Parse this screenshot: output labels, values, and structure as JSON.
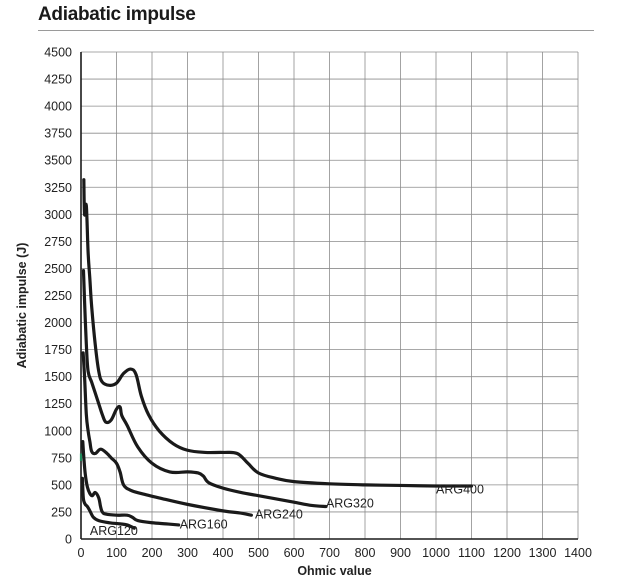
{
  "page": {
    "title": "Adiabatic impulse"
  },
  "chart_data": {
    "type": "line",
    "title": "Adiabatic impulse",
    "xlabel": "Ohmic value",
    "ylabel": "Adiabatic impulse (J)",
    "xlim": [
      0,
      1400
    ],
    "ylim": [
      0,
      4500
    ],
    "x_ticks": [
      0,
      100,
      200,
      300,
      400,
      500,
      600,
      700,
      800,
      900,
      1000,
      1100,
      1200,
      1300,
      1400
    ],
    "y_ticks": [
      0,
      250,
      500,
      750,
      1000,
      1250,
      1500,
      1750,
      2000,
      2250,
      2500,
      2750,
      3000,
      3250,
      3500,
      3750,
      4000,
      4250,
      4500
    ],
    "grid": true,
    "colors": {
      "series": "#1a1a1a",
      "grid": "#8c8c8c",
      "axis": "#1a1a1a",
      "marker": "#1e8a5a"
    },
    "series": [
      {
        "name": "ARG400",
        "label_pos": [
          1000,
          420
        ],
        "points": [
          [
            8,
            3320
          ],
          [
            10,
            3000
          ],
          [
            15,
            3080
          ],
          [
            20,
            2650
          ],
          [
            25,
            2400
          ],
          [
            30,
            2150
          ],
          [
            40,
            1800
          ],
          [
            50,
            1550
          ],
          [
            60,
            1450
          ],
          [
            80,
            1420
          ],
          [
            100,
            1440
          ],
          [
            120,
            1530
          ],
          [
            140,
            1570
          ],
          [
            155,
            1520
          ],
          [
            170,
            1320
          ],
          [
            190,
            1150
          ],
          [
            220,
            1000
          ],
          [
            260,
            880
          ],
          [
            300,
            820
          ],
          [
            350,
            800
          ],
          [
            400,
            800
          ],
          [
            440,
            790
          ],
          [
            470,
            700
          ],
          [
            500,
            610
          ],
          [
            550,
            560
          ],
          [
            600,
            530
          ],
          [
            700,
            510
          ],
          [
            800,
            500
          ],
          [
            900,
            495
          ],
          [
            1000,
            490
          ],
          [
            1100,
            490
          ]
        ]
      },
      {
        "name": "ARG320",
        "label_pos": [
          690,
          290
        ],
        "points": [
          [
            7,
            2480
          ],
          [
            10,
            2200
          ],
          [
            15,
            1800
          ],
          [
            20,
            1550
          ],
          [
            30,
            1450
          ],
          [
            40,
            1350
          ],
          [
            50,
            1250
          ],
          [
            60,
            1150
          ],
          [
            70,
            1080
          ],
          [
            85,
            1100
          ],
          [
            100,
            1200
          ],
          [
            110,
            1220
          ],
          [
            115,
            1140
          ],
          [
            130,
            1050
          ],
          [
            160,
            850
          ],
          [
            200,
            700
          ],
          [
            250,
            620
          ],
          [
            300,
            620
          ],
          [
            330,
            610
          ],
          [
            345,
            580
          ],
          [
            360,
            520
          ],
          [
            400,
            470
          ],
          [
            450,
            430
          ],
          [
            500,
            400
          ],
          [
            550,
            370
          ],
          [
            600,
            340
          ],
          [
            650,
            310
          ],
          [
            690,
            300
          ]
        ]
      },
      {
        "name": "ARG240",
        "label_pos": [
          490,
          190
        ],
        "points": [
          [
            6,
            1720
          ],
          [
            10,
            1500
          ],
          [
            15,
            1150
          ],
          [
            20,
            1000
          ],
          [
            25,
            900
          ],
          [
            30,
            810
          ],
          [
            40,
            790
          ],
          [
            55,
            830
          ],
          [
            70,
            800
          ],
          [
            85,
            750
          ],
          [
            100,
            700
          ],
          [
            110,
            620
          ],
          [
            120,
            500
          ],
          [
            140,
            450
          ],
          [
            170,
            420
          ],
          [
            220,
            380
          ],
          [
            300,
            320
          ],
          [
            400,
            260
          ],
          [
            450,
            240
          ],
          [
            480,
            220
          ]
        ]
      },
      {
        "name": "ARG160",
        "label_pos": [
          278,
          95
        ],
        "points": [
          [
            5,
            900
          ],
          [
            8,
            750
          ],
          [
            12,
            600
          ],
          [
            18,
            480
          ],
          [
            25,
            420
          ],
          [
            32,
            400
          ],
          [
            40,
            430
          ],
          [
            50,
            380
          ],
          [
            55,
            300
          ],
          [
            60,
            250
          ],
          [
            70,
            230
          ],
          [
            100,
            220
          ],
          [
            130,
            220
          ],
          [
            145,
            200
          ],
          [
            160,
            170
          ],
          [
            200,
            150
          ],
          [
            240,
            140
          ],
          [
            275,
            130
          ]
        ]
      },
      {
        "name": "ARG120",
        "label_pos": [
          25,
          35
        ],
        "points": [
          [
            4,
            560
          ],
          [
            6,
            400
          ],
          [
            8,
            350
          ],
          [
            12,
            320
          ],
          [
            18,
            300
          ],
          [
            25,
            260
          ],
          [
            35,
            200
          ],
          [
            50,
            170
          ],
          [
            80,
            150
          ],
          [
            110,
            140
          ],
          [
            130,
            130
          ],
          [
            150,
            100
          ]
        ]
      }
    ]
  }
}
